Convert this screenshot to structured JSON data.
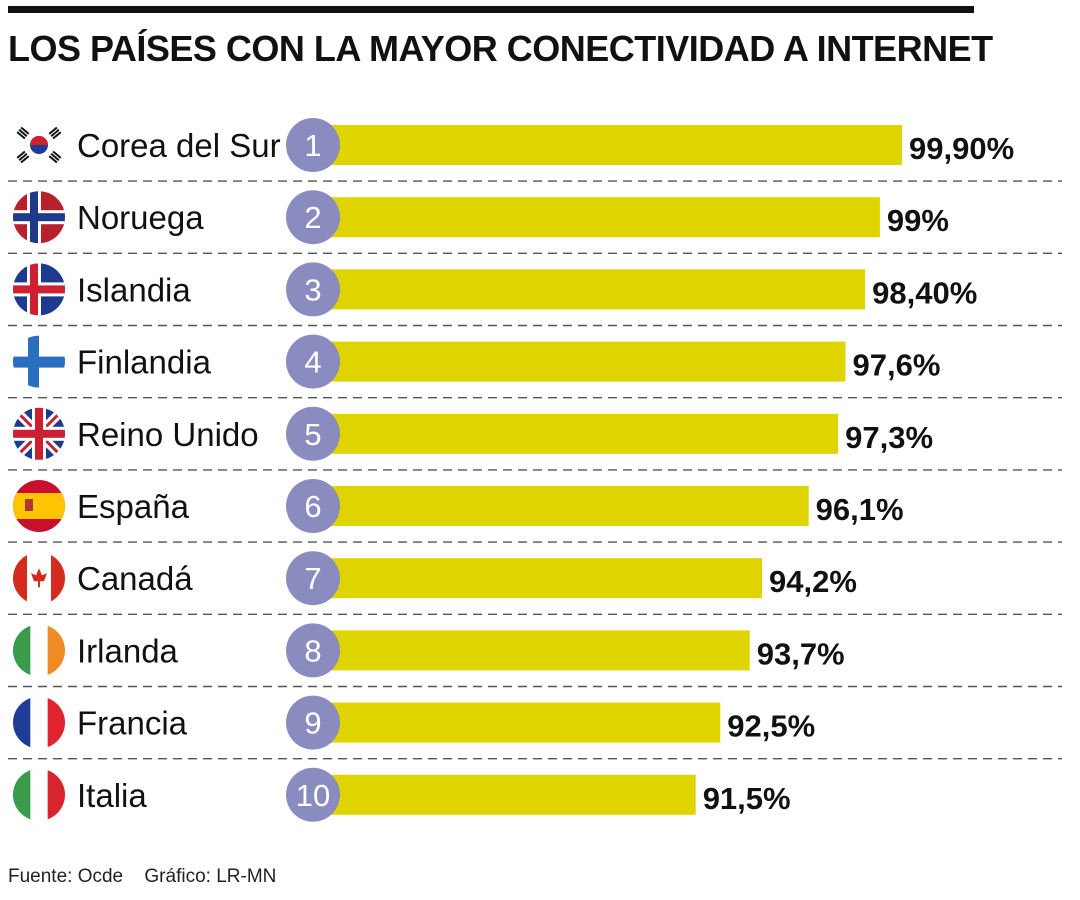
{
  "title": "LOS PAÍSES CON LA MAYOR CONECTIVIDAD A INTERNET",
  "source": {
    "fuente": "Fuente: Ocde",
    "grafico": "Gráfico: LR-MN"
  },
  "colors": {
    "bar": "#dfd400",
    "badge": "#8a8cc0",
    "badge_text": "#ffffff",
    "rule": "#111111",
    "separator": "#555555"
  },
  "chart_data": {
    "type": "bar",
    "orientation": "horizontal",
    "title": "LOS PAÍSES CON LA MAYOR CONECTIVIDAD A INTERNET",
    "categories": [
      "Corea del Sur",
      "Noruega",
      "Islandia",
      "Finlandia",
      "Reino Unido",
      "España",
      "Canadá",
      "Irlanda",
      "Francia",
      "Italia"
    ],
    "ranks": [
      "1",
      "2",
      "3",
      "4",
      "5",
      "6",
      "7",
      "8",
      "9",
      "10"
    ],
    "values": [
      99.9,
      99,
      98.4,
      97.6,
      97.3,
      96.1,
      94.2,
      93.7,
      92.5,
      91.5
    ],
    "value_labels": [
      "99,90%",
      "99%",
      "98,40%",
      "97,6%",
      "97,3%",
      "96,1%",
      "94,2%",
      "93,7%",
      "92,5%",
      "91,5%"
    ],
    "flags": [
      "south-korea-flag-icon",
      "norway-flag-icon",
      "iceland-flag-icon",
      "finland-flag-icon",
      "uk-flag-icon",
      "spain-flag-icon",
      "canada-flag-icon",
      "ireland-flag-icon",
      "france-flag-icon",
      "italy-flag-icon"
    ],
    "xlim": [
      76,
      100
    ],
    "grid": false,
    "legend": "none"
  }
}
